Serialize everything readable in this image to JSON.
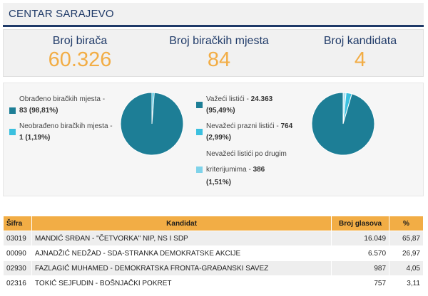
{
  "header": {
    "title": "CENTAR SARAJEVO"
  },
  "stats": [
    {
      "label": "Broj birača",
      "value": "60.326"
    },
    {
      "label": "Broj biračkih mjesta",
      "value": "84"
    },
    {
      "label": "Broj kandidata",
      "value": "4"
    }
  ],
  "pie1": {
    "legend": [
      {
        "label": "Obrađeno biračkih mjesta -",
        "value": "83 (98,81%)",
        "color": "#1d7e96"
      },
      {
        "label": "Neobrađeno biračkih mjesta -",
        "value": "1 (1,19%)",
        "color": "#3bc0df"
      }
    ],
    "slices": [
      {
        "value": 98.81,
        "color": "#1d7e96"
      },
      {
        "value": 1.19,
        "color": "#3bc0df"
      }
    ]
  },
  "pie2": {
    "legend": [
      {
        "label": "Važeći listići -",
        "value": "24.363",
        "pct": "(95,49%)",
        "color": "#1d7e96"
      },
      {
        "label": "Nevažeći prazni listići -",
        "value": "764",
        "pct": "(2,99%)",
        "color": "#3bc0df"
      },
      {
        "label": "Nevažeći listići po drugim",
        "label2": "kriterijumima -",
        "value": "386",
        "pct": "(1,51%)",
        "color": "#7fd3ea"
      }
    ],
    "slices": [
      {
        "value": 95.49,
        "color": "#1d7e96"
      },
      {
        "value": 2.99,
        "color": "#3bc0df"
      },
      {
        "value": 1.51,
        "color": "#a8e2f2"
      }
    ]
  },
  "table": {
    "headers": {
      "sifra": "Šifra",
      "kandidat": "Kandidat",
      "glasovi": "Broj glasova",
      "pct": "%"
    },
    "rows": [
      {
        "sifra": "03019",
        "kandidat": "MANDIĆ SRĐAN - \"ČETVORKA\" NIP, NS I SDP",
        "glasovi": "16.049",
        "pct": "65,87"
      },
      {
        "sifra": "00090",
        "kandidat": "AJNADŽIĆ NEDŽAD - SDA-STRANKA DEMOKRATSKE AKCIJE",
        "glasovi": "6.570",
        "pct": "26,97"
      },
      {
        "sifra": "02930",
        "kandidat": "FAZLAGIĆ MUHAMED - DEMOKRATSKA FRONTA-GRAĐANSKI SAVEZ",
        "glasovi": "987",
        "pct": "4,05"
      },
      {
        "sifra": "02316",
        "kandidat": "TOKIĆ SEJFUDIN - BOŠNJAČKI POKRET",
        "glasovi": "757",
        "pct": "3,11"
      }
    ]
  }
}
